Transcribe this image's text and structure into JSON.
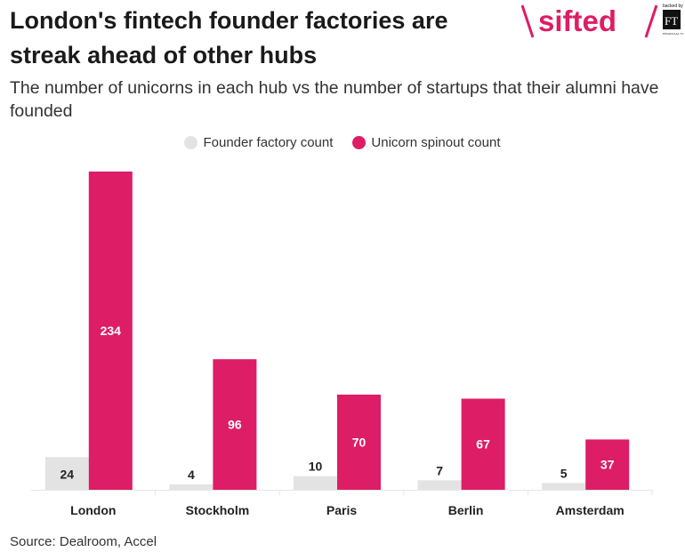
{
  "header": {
    "title": "London's fintech founder factories are streak ahead of other hubs",
    "subtitle": "The number of unicorns in each hub vs the number of startups that their alumni have founded",
    "logo_text": "sifted",
    "backed_by": "backed by",
    "ft_text": "FT",
    "ft_sub": "FINANCIAL TIMES"
  },
  "colors": {
    "founder": "#e3e3e3",
    "unicorn": "#dd1d66",
    "logo": "#dd1d66"
  },
  "chart_data": {
    "type": "bar",
    "title": "London's fintech founder factories are streak ahead of other hubs",
    "subtitle": "The number of unicorns in each hub vs the number of startups that their alumni have founded",
    "categories": [
      "London",
      "Stockholm",
      "Paris",
      "Berlin",
      "Amsterdam"
    ],
    "series": [
      {
        "name": "Founder factory count",
        "values": [
          24,
          4,
          10,
          7,
          5
        ]
      },
      {
        "name": "Unicorn spinout count",
        "values": [
          234,
          96,
          70,
          67,
          37
        ]
      }
    ],
    "ylim": [
      0,
      234
    ],
    "grid": false,
    "legend": "top-center",
    "xlabel": "",
    "ylabel": ""
  },
  "footer": {
    "source": "Source: Dealroom, Accel"
  }
}
